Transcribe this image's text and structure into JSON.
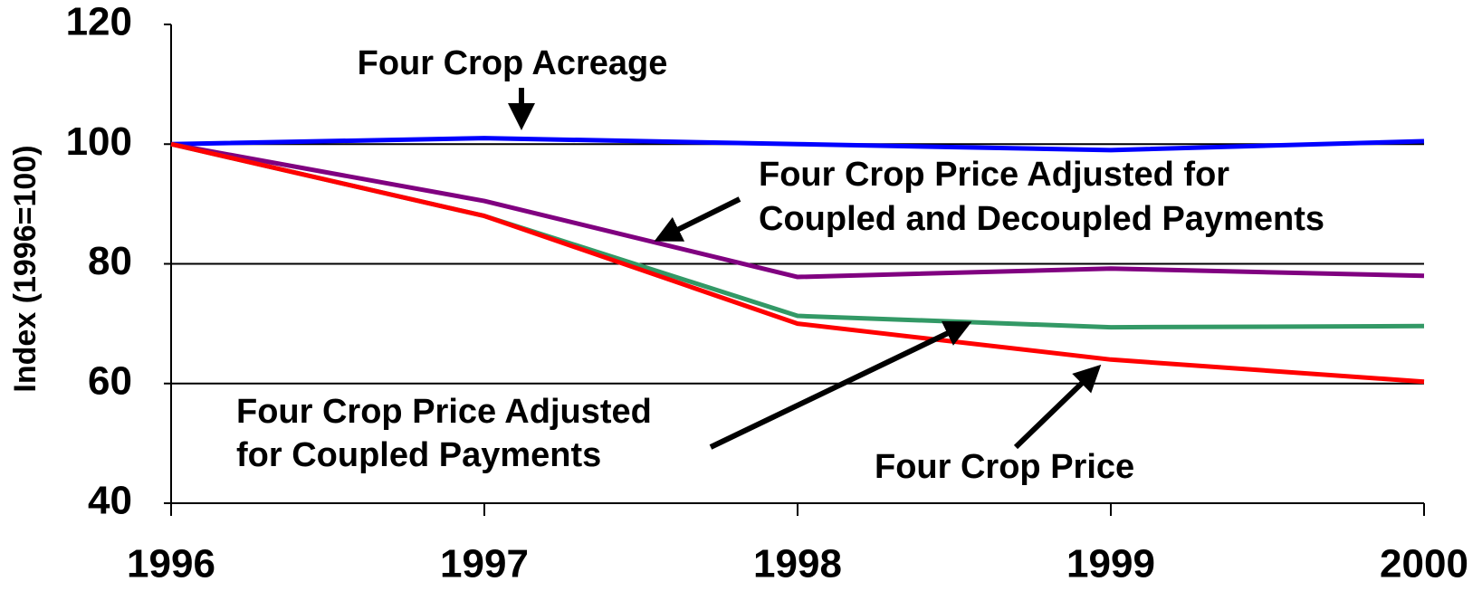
{
  "chart_data": {
    "type": "line",
    "y_label": "Index (1996=100)",
    "x": [
      1996,
      1997,
      1998,
      1999,
      2000
    ],
    "xlim": [
      1996,
      2000
    ],
    "xticks": [
      1996,
      1997,
      1998,
      1999,
      2000
    ],
    "ylim": [
      40,
      120
    ],
    "yticks": [
      40,
      60,
      80,
      100,
      120
    ],
    "grid": true,
    "series": [
      {
        "color": "#0000ff",
        "values": [
          100,
          101,
          100,
          99,
          100.5
        ]
      },
      {
        "color": "#800080",
        "values": [
          100,
          90.5,
          77.8,
          79.2,
          78
        ]
      },
      {
        "color": "#339966",
        "values": [
          100,
          88,
          71.3,
          69.4,
          69.6
        ]
      },
      {
        "color": "#ff0000",
        "values": [
          100,
          88,
          70,
          64,
          60.3
        ]
      }
    ],
    "annotations": [
      {
        "lines": [
          "Four Crop Acreage"
        ]
      },
      {
        "lines": [
          "Four Crop Price Adjusted for",
          "Coupled and Decoupled Payments"
        ]
      },
      {
        "lines": [
          "Four Crop Price Adjusted",
          "for Coupled Payments"
        ]
      },
      {
        "lines": [
          "Four Crop Price"
        ]
      }
    ]
  }
}
